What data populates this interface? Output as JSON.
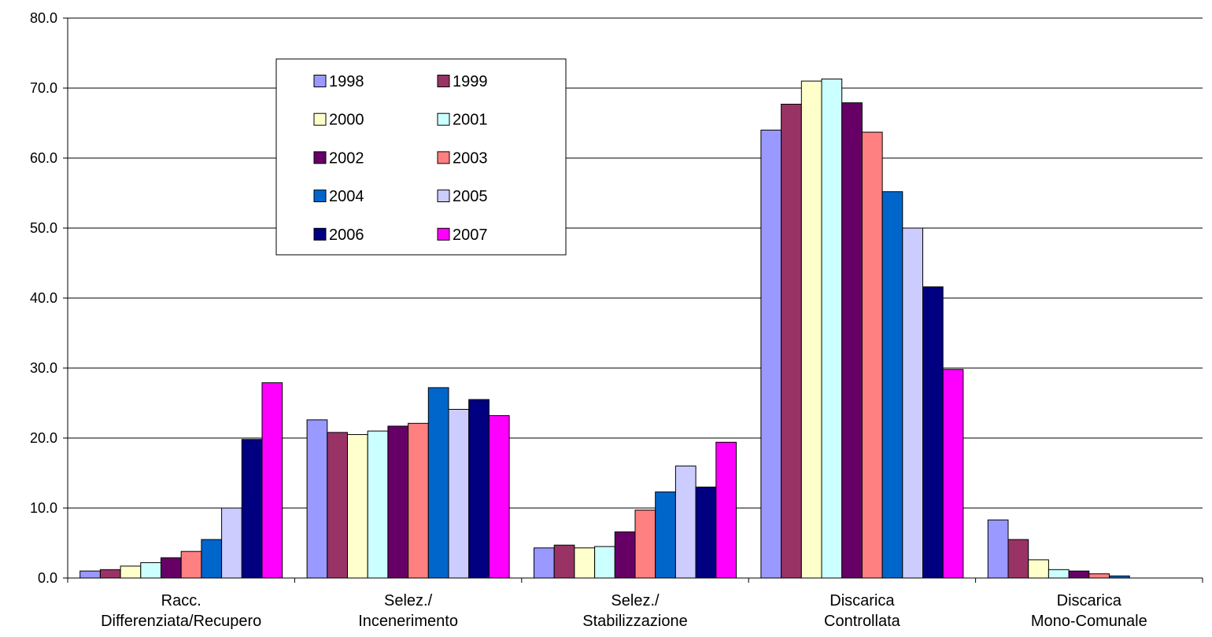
{
  "chart_data": {
    "type": "bar",
    "title": "",
    "xlabel": "",
    "ylabel": "",
    "ylim": [
      0,
      80
    ],
    "yticks": [
      "0.0",
      "10.0",
      "20.0",
      "30.0",
      "40.0",
      "50.0",
      "60.0",
      "70.0",
      "80.0"
    ],
    "grid": true,
    "legend_position": "top-left inside",
    "categories": [
      [
        "Racc.",
        "Differenziata/Recupero"
      ],
      [
        "Selez./",
        "Incenerimento"
      ],
      [
        "Selez./",
        "Stabilizzazione"
      ],
      [
        "Discarica",
        "Controllata"
      ],
      [
        "Discarica",
        "Mono-Comunale"
      ]
    ],
    "series": [
      {
        "name": "1998",
        "color": "#9999FF",
        "values": [
          1.0,
          22.6,
          4.3,
          64.0,
          8.3
        ]
      },
      {
        "name": "1999",
        "color": "#993366",
        "values": [
          1.2,
          20.8,
          4.7,
          67.7,
          5.5
        ]
      },
      {
        "name": "2000",
        "color": "#FFFFCC",
        "values": [
          1.7,
          20.5,
          4.3,
          71.0,
          2.6
        ]
      },
      {
        "name": "2001",
        "color": "#CCFFFF",
        "values": [
          2.2,
          21.0,
          4.5,
          71.3,
          1.2
        ]
      },
      {
        "name": "2002",
        "color": "#660066",
        "values": [
          2.9,
          21.7,
          6.6,
          67.9,
          1.0
        ]
      },
      {
        "name": "2003",
        "color": "#FF8080",
        "values": [
          3.8,
          22.1,
          9.7,
          63.7,
          0.6
        ]
      },
      {
        "name": "2004",
        "color": "#0066CC",
        "values": [
          5.5,
          27.2,
          12.3,
          55.2,
          0.3
        ]
      },
      {
        "name": "2005",
        "color": "#CCCCFF",
        "values": [
          10.0,
          24.1,
          16.0,
          50.0,
          0.0
        ]
      },
      {
        "name": "2006",
        "color": "#000080",
        "values": [
          19.8,
          25.5,
          13.0,
          41.6,
          0.0
        ]
      },
      {
        "name": "2007",
        "color": "#FF00FF",
        "values": [
          27.9,
          23.2,
          19.4,
          29.8,
          0.0
        ]
      }
    ]
  }
}
